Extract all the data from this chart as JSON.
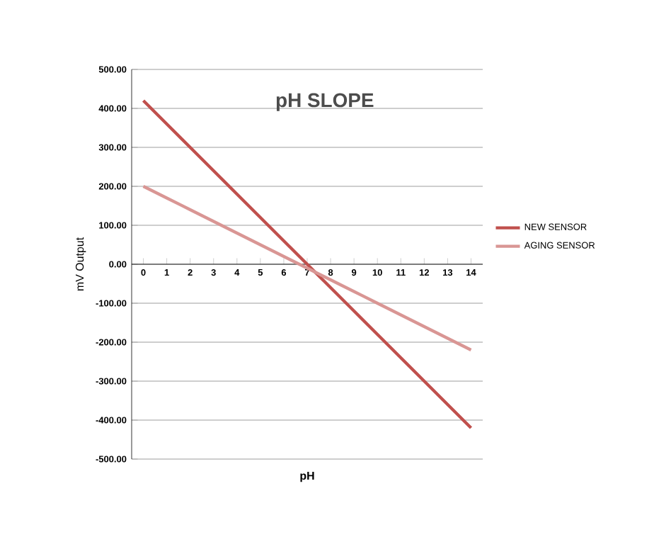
{
  "chart_data": {
    "type": "line",
    "title": "pH SLOPE",
    "xlabel": "pH",
    "ylabel": "mV Output",
    "categories": [
      "0",
      "1",
      "2",
      "3",
      "4",
      "5",
      "6",
      "7",
      "8",
      "9",
      "10",
      "11",
      "12",
      "13",
      "14"
    ],
    "series": [
      {
        "name": "NEW SENSOR",
        "color": "#c0504d",
        "values": [
          420,
          360,
          300,
          240,
          180,
          120,
          60,
          0,
          -60,
          -120,
          -180,
          -240,
          -300,
          -360,
          -420
        ]
      },
      {
        "name": "AGING SENSOR",
        "color": "#d99694",
        "values": [
          200,
          170,
          140,
          110,
          80,
          50,
          20,
          -10,
          -40,
          -70,
          -100,
          -130,
          -160,
          -190,
          -220
        ]
      }
    ],
    "ylim": [
      -500,
      500
    ],
    "yticks": [
      {
        "value": -500,
        "label": "-500.00"
      },
      {
        "value": -400,
        "label": "-400.00"
      },
      {
        "value": -300,
        "label": "-300.00"
      },
      {
        "value": -200,
        "label": "-200.00"
      },
      {
        "value": -100,
        "label": "-100.00"
      },
      {
        "value": 0,
        "label": "0.00"
      },
      {
        "value": 100,
        "label": "100.00"
      },
      {
        "value": 200,
        "label": "200.00"
      },
      {
        "value": 300,
        "label": "300.00"
      },
      {
        "value": 400,
        "label": "400.00"
      },
      {
        "value": 500,
        "label": "500.00"
      }
    ],
    "legend": "right",
    "grid": "y"
  }
}
